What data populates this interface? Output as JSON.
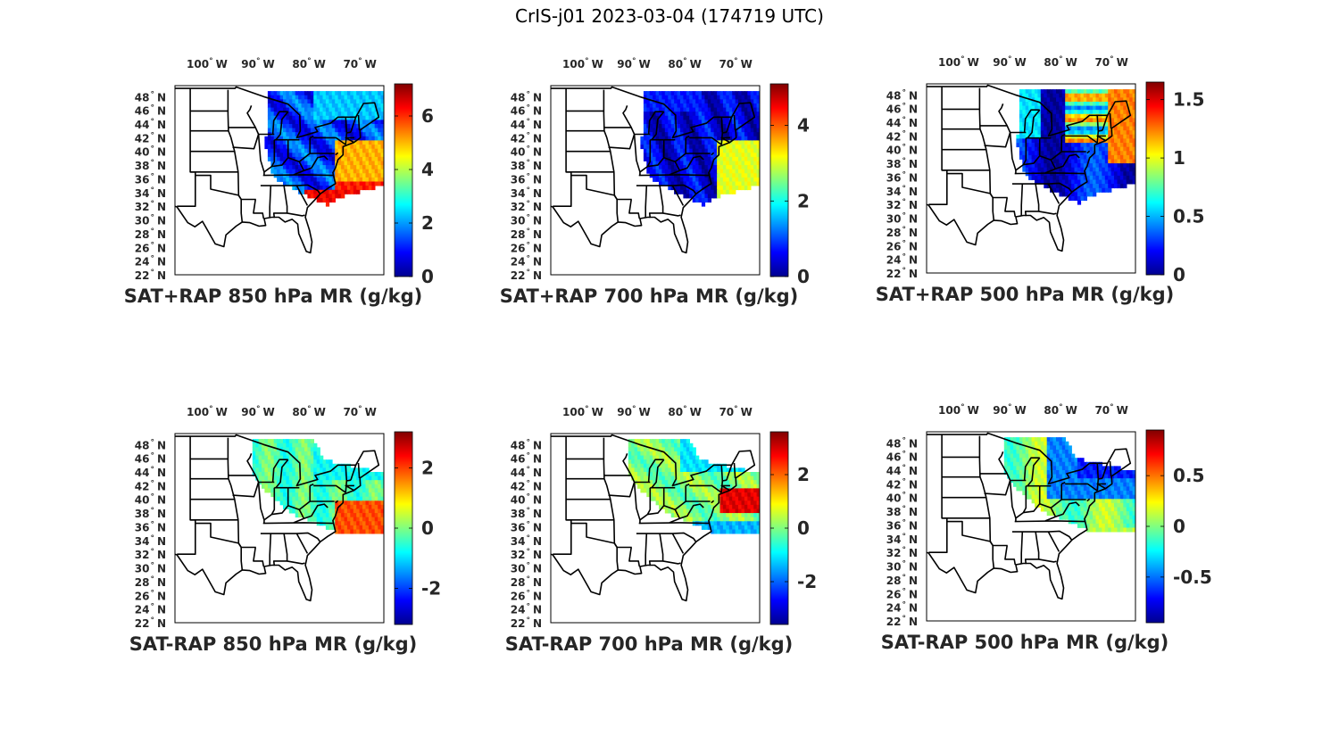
{
  "figure_title": "CrIS-j01 2023-03-04 (174719 UTC)",
  "colors": {
    "jet": [
      "#00008f",
      "#0000ff",
      "#0080ff",
      "#00ffff",
      "#80ff80",
      "#ffff00",
      "#ff8000",
      "#ff0000",
      "#800000"
    ]
  },
  "lon_labels": [
    {
      "num": "100",
      "hem": "W"
    },
    {
      "num": "90",
      "hem": "W"
    },
    {
      "num": "80",
      "hem": "W"
    },
    {
      "num": "70",
      "hem": "W"
    }
  ],
  "lat_labels": [
    {
      "num": "48",
      "hem": "N"
    },
    {
      "num": "46",
      "hem": "N"
    },
    {
      "num": "44",
      "hem": "N"
    },
    {
      "num": "42",
      "hem": "N"
    },
    {
      "num": "40",
      "hem": "N"
    },
    {
      "num": "38",
      "hem": "N"
    },
    {
      "num": "36",
      "hem": "N"
    },
    {
      "num": "34",
      "hem": "N"
    },
    {
      "num": "32",
      "hem": "N"
    },
    {
      "num": "30",
      "hem": "N"
    },
    {
      "num": "28",
      "hem": "N"
    },
    {
      "num": "26",
      "hem": "N"
    },
    {
      "num": "24",
      "hem": "N"
    },
    {
      "num": "22",
      "hem": "N"
    }
  ],
  "panels": [
    {
      "title": "SAT+RAP 850 hPa MR (g/kg)",
      "colorbar": {
        "min": 0,
        "max": 7.2,
        "ticks": [
          "0",
          "2",
          "4",
          "6"
        ],
        "tick_values": [
          0,
          2,
          4,
          6
        ]
      }
    },
    {
      "title": "SAT+RAP 700 hPa MR (g/kg)",
      "colorbar": {
        "min": 0,
        "max": 5.1,
        "ticks": [
          "0",
          "2",
          "4"
        ],
        "tick_values": [
          0,
          2,
          4
        ]
      }
    },
    {
      "title": "SAT+RAP 500 hPa MR (g/kg)",
      "colorbar": {
        "min": 0,
        "max": 1.65,
        "ticks": [
          "0",
          "0.5",
          "1",
          "1.5"
        ],
        "tick_values": [
          0,
          0.5,
          1,
          1.5
        ]
      }
    },
    {
      "title": "SAT-RAP 850 hPa MR (g/kg)",
      "colorbar": {
        "min": -3.2,
        "max": 3.2,
        "ticks": [
          "-2",
          "0",
          "2"
        ],
        "tick_values": [
          -2,
          0,
          2
        ]
      }
    },
    {
      "title": "SAT-RAP 700 hPa MR (g/kg)",
      "colorbar": {
        "min": -3.6,
        "max": 3.6,
        "ticks": [
          "-2",
          "0",
          "2"
        ],
        "tick_values": [
          -2,
          0,
          2
        ]
      }
    },
    {
      "title": "SAT-RAP 500 hPa MR (g/kg)",
      "colorbar": {
        "min": -0.95,
        "max": 0.95,
        "ticks": [
          "-0.5",
          "0",
          "0.5"
        ],
        "tick_values": [
          -0.5,
          0,
          0.5
        ]
      }
    }
  ]
}
